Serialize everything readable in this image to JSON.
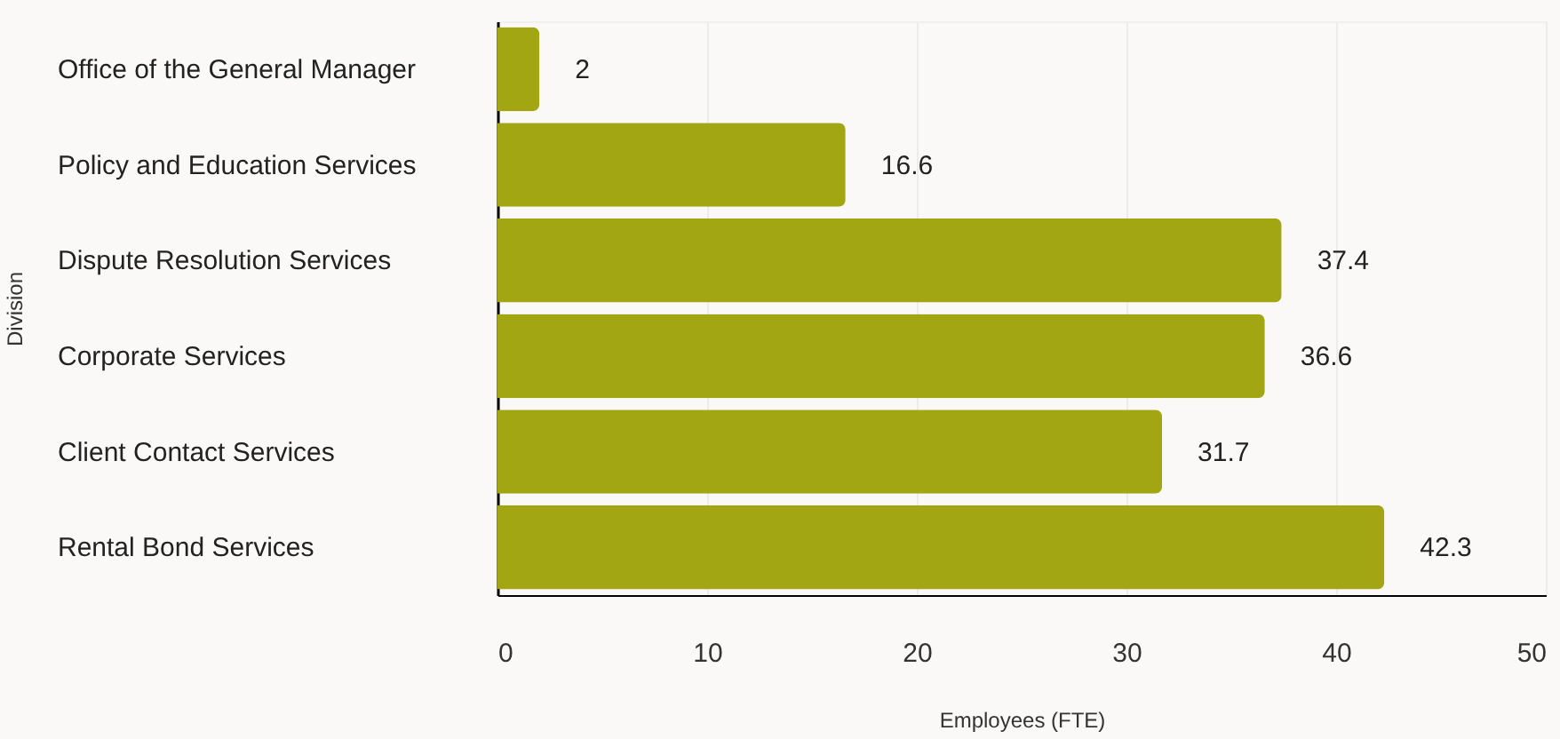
{
  "chart_data": {
    "type": "bar",
    "orientation": "horizontal",
    "xlabel": "Employees (FTE)",
    "ylabel": "Division",
    "categories": [
      "Office of the General Manager",
      "Policy and Education Services",
      "Dispute Resolution Services",
      "Corporate Services",
      "Client Contact Services",
      "Rental Bond Services"
    ],
    "values": [
      2,
      16.6,
      37.4,
      36.6,
      31.7,
      42.3
    ],
    "color": "#a3a613",
    "xlim": [
      0,
      50
    ],
    "xticks": [
      0,
      10,
      20,
      30,
      40,
      50
    ],
    "grid": "x",
    "data_labels": true
  }
}
